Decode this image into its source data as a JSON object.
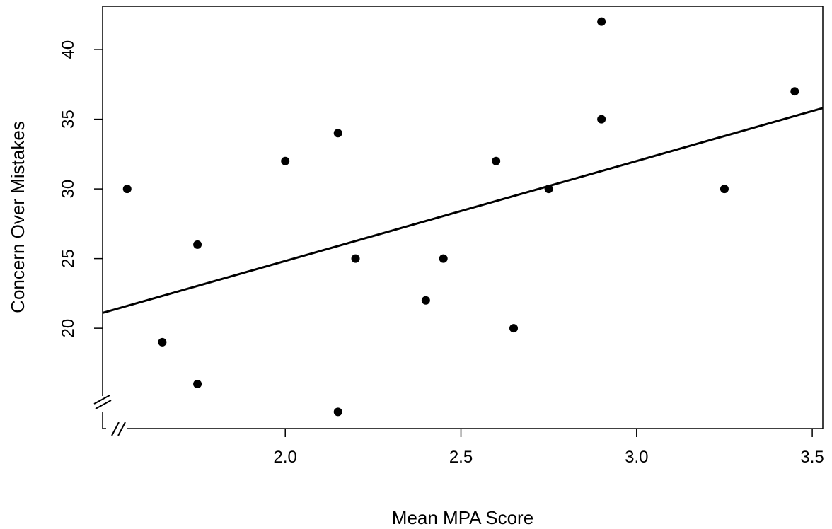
{
  "chart_data": {
    "type": "scatter",
    "title": "",
    "xlabel": "Mean MPA Score",
    "ylabel": "Concern Over Mistakes",
    "xlim": [
      1.48,
      3.53
    ],
    "ylim": [
      12.8,
      43.1
    ],
    "x_ticks": [
      "2.0",
      "2.5",
      "3.0",
      "3.5"
    ],
    "x_tick_values": [
      2.0,
      2.5,
      3.0,
      3.5
    ],
    "y_ticks": [
      "20",
      "25",
      "30",
      "35",
      "40"
    ],
    "y_tick_values": [
      20,
      25,
      30,
      35,
      40
    ],
    "axis_breaks": [
      "x",
      "y"
    ],
    "grid": false,
    "legend": "none",
    "points": [
      {
        "x": 1.55,
        "y": 30
      },
      {
        "x": 1.65,
        "y": 19
      },
      {
        "x": 1.75,
        "y": 26
      },
      {
        "x": 1.75,
        "y": 16
      },
      {
        "x": 2.0,
        "y": 32
      },
      {
        "x": 2.15,
        "y": 34
      },
      {
        "x": 2.15,
        "y": 14
      },
      {
        "x": 2.2,
        "y": 25
      },
      {
        "x": 2.4,
        "y": 22
      },
      {
        "x": 2.45,
        "y": 25
      },
      {
        "x": 2.6,
        "y": 32
      },
      {
        "x": 2.65,
        "y": 20
      },
      {
        "x": 2.75,
        "y": 30
      },
      {
        "x": 2.9,
        "y": 42
      },
      {
        "x": 2.9,
        "y": 35
      },
      {
        "x": 3.25,
        "y": 30
      },
      {
        "x": 3.45,
        "y": 37
      }
    ],
    "regression_line": {
      "x": [
        1.48,
        3.53
      ],
      "y": [
        21.1,
        35.8
      ]
    },
    "colors": {
      "points": "#000000",
      "line": "#000000",
      "axes": "#000000"
    }
  }
}
